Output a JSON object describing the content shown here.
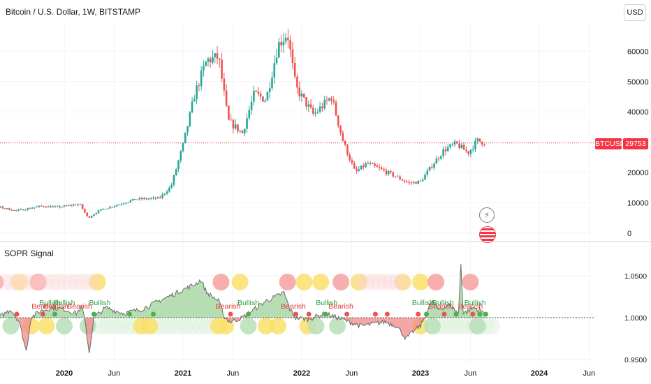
{
  "header": {
    "title": "Bitcoin / U.S. Dollar, 1W, BITSTAMP",
    "currency_button": "USD"
  },
  "price_pane": {
    "y_ticks": [
      "60000",
      "50000",
      "40000",
      "30000",
      "20000",
      "10000",
      "0"
    ],
    "last_price_symbol": "BTCUSD",
    "last_price_value": "29753",
    "last_price": 29753
  },
  "indicator_pane": {
    "title": "SOPR Signal",
    "y_ticks": [
      "1.0500",
      "1.0000",
      "0.9500"
    ],
    "signal_labels": [
      {
        "text": "Bearish",
        "kind": "bearish",
        "t": 2019.83
      },
      {
        "text": "Bullish",
        "kind": "bullish",
        "t": 2019.88
      },
      {
        "text": "Bearish",
        "kind": "bearish",
        "t": 2019.93
      },
      {
        "text": "Bullish",
        "kind": "bullish",
        "t": 2020.0
      },
      {
        "text": "Bearish",
        "kind": "bearish",
        "t": 2020.13
      },
      {
        "text": "Bullish",
        "kind": "bullish",
        "t": 2020.3
      },
      {
        "text": "Bearish",
        "kind": "bearish",
        "t": 2021.38
      },
      {
        "text": "Bullish",
        "kind": "bullish",
        "t": 2021.55
      },
      {
        "text": "Bearish",
        "kind": "bearish",
        "t": 2021.93
      },
      {
        "text": "Bullish",
        "kind": "bullish",
        "t": 2022.21
      },
      {
        "text": "Bearish",
        "kind": "bearish",
        "t": 2022.33
      },
      {
        "text": "Bullish",
        "kind": "bullish",
        "t": 2023.02
      },
      {
        "text": "Bullish",
        "kind": "bullish",
        "t": 2023.19
      },
      {
        "text": "Bearish",
        "kind": "bearish",
        "t": 2023.17
      },
      {
        "text": "Bearish",
        "kind": "bearish",
        "t": 2023.42
      },
      {
        "text": "Bullish",
        "kind": "bullish",
        "t": 2023.46
      }
    ]
  },
  "x_axis": {
    "ticks": [
      {
        "label": "2020",
        "t": 2020.0,
        "bold": true
      },
      {
        "label": "Jun",
        "t": 2020.42,
        "bold": false
      },
      {
        "label": "2021",
        "t": 2021.0,
        "bold": true
      },
      {
        "label": "Jun",
        "t": 2021.42,
        "bold": false
      },
      {
        "label": "2022",
        "t": 2022.0,
        "bold": true
      },
      {
        "label": "Jun",
        "t": 2022.42,
        "bold": false
      },
      {
        "label": "2023",
        "t": 2023.0,
        "bold": true
      },
      {
        "label": "Jun",
        "t": 2023.42,
        "bold": false
      },
      {
        "label": "2024",
        "t": 2024.0,
        "bold": true
      },
      {
        "label": "Jun",
        "t": 2024.42,
        "bold": false
      }
    ]
  },
  "colors": {
    "up": "#26a69a",
    "down": "#ef5350",
    "bullish_text": "#2e9e44",
    "bearish_text": "#e03a3a",
    "grid": "#f0f3fa",
    "last_price": "#f23645"
  },
  "icons": [
    "lightning-icon",
    "us-flag-icon"
  ],
  "chart_data": [
    {
      "type": "candlestick",
      "title": "Bitcoin / U.S. Dollar, 1W, BITSTAMP",
      "x_unit": "year",
      "ylim": [
        0,
        70000
      ],
      "close_anchors": [
        [
          2019.0,
          13000
        ],
        [
          2019.15,
          10500
        ],
        [
          2019.3,
          9800
        ],
        [
          2019.45,
          8600
        ],
        [
          2019.6,
          7400
        ],
        [
          2019.8,
          8900
        ],
        [
          2019.95,
          8600
        ],
        [
          2020.13,
          9600
        ],
        [
          2020.2,
          5000
        ],
        [
          2020.3,
          7600
        ],
        [
          2020.45,
          9400
        ],
        [
          2020.6,
          11200
        ],
        [
          2020.8,
          11500
        ],
        [
          2020.9,
          15500
        ],
        [
          2021.0,
          29000
        ],
        [
          2021.1,
          46000
        ],
        [
          2021.2,
          57000
        ],
        [
          2021.3,
          58000
        ],
        [
          2021.38,
          37000
        ],
        [
          2021.5,
          33000
        ],
        [
          2021.6,
          46000
        ],
        [
          2021.7,
          44000
        ],
        [
          2021.8,
          62000
        ],
        [
          2021.88,
          66000
        ],
        [
          2021.95,
          48000
        ],
        [
          2022.1,
          39000
        ],
        [
          2022.25,
          45000
        ],
        [
          2022.35,
          30000
        ],
        [
          2022.45,
          20000
        ],
        [
          2022.55,
          23000
        ],
        [
          2022.75,
          19500
        ],
        [
          2022.9,
          16500
        ],
        [
          2023.0,
          17000
        ],
        [
          2023.1,
          22500
        ],
        [
          2023.2,
          27500
        ],
        [
          2023.3,
          29500
        ],
        [
          2023.4,
          26500
        ],
        [
          2023.48,
          30500
        ],
        [
          2023.55,
          29753
        ]
      ]
    },
    {
      "type": "area",
      "title": "SOPR Signal",
      "x_unit": "year",
      "ylim": [
        0.95,
        1.065
      ],
      "baseline": 1.0,
      "anchors": [
        [
          2019.0,
          1.015
        ],
        [
          2019.06,
          1.0
        ],
        [
          2019.12,
          1.01
        ],
        [
          2019.2,
          1.0
        ],
        [
          2019.28,
          1.012
        ],
        [
          2019.36,
          1.005
        ],
        [
          2019.45,
          1.0
        ],
        [
          2019.55,
          1.01
        ],
        [
          2019.62,
          0.995
        ],
        [
          2019.68,
          0.96
        ],
        [
          2019.72,
          1.0
        ],
        [
          2019.8,
          1.008
        ],
        [
          2019.9,
          1.012
        ],
        [
          2020.0,
          1.01
        ],
        [
          2020.1,
          1.005
        ],
        [
          2020.15,
          1.013
        ],
        [
          2020.18,
          0.99
        ],
        [
          2020.21,
          0.958
        ],
        [
          2020.25,
          1.0
        ],
        [
          2020.35,
          1.012
        ],
        [
          2020.5,
          1.005
        ],
        [
          2020.65,
          1.01
        ],
        [
          2020.8,
          1.02
        ],
        [
          2020.95,
          1.03
        ],
        [
          2021.1,
          1.04
        ],
        [
          2021.15,
          1.045
        ],
        [
          2021.2,
          1.03
        ],
        [
          2021.3,
          1.02
        ],
        [
          2021.35,
          1.0
        ],
        [
          2021.4,
          0.995
        ],
        [
          2021.5,
          1.0
        ],
        [
          2021.6,
          1.01
        ],
        [
          2021.7,
          1.02
        ],
        [
          2021.78,
          1.025
        ],
        [
          2021.85,
          1.03
        ],
        [
          2021.9,
          1.01
        ],
        [
          2021.95,
          1.0
        ],
        [
          2022.05,
          0.998
        ],
        [
          2022.2,
          1.005
        ],
        [
          2022.3,
          1.0
        ],
        [
          2022.4,
          0.995
        ],
        [
          2022.5,
          0.99
        ],
        [
          2022.7,
          0.995
        ],
        [
          2022.8,
          0.99
        ],
        [
          2022.88,
          0.975
        ],
        [
          2022.95,
          0.985
        ],
        [
          2023.0,
          0.99
        ],
        [
          2023.05,
          1.005
        ],
        [
          2023.1,
          1.02
        ],
        [
          2023.15,
          1.01
        ],
        [
          2023.25,
          1.015
        ],
        [
          2023.32,
          1.005
        ],
        [
          2023.34,
          1.065
        ],
        [
          2023.36,
          1.005
        ],
        [
          2023.45,
          1.012
        ],
        [
          2023.55,
          1.005
        ]
      ]
    }
  ]
}
